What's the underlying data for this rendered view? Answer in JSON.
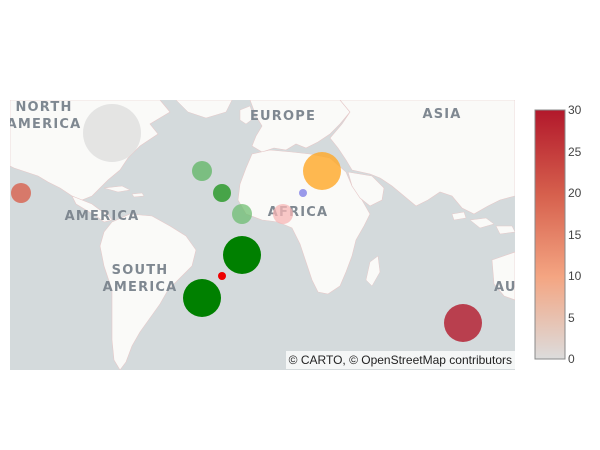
{
  "map": {
    "basemap": "carto-positron",
    "attribution": "© CARTO, © OpenStreetMap contributors",
    "region_labels": [
      {
        "id": "north-america",
        "lines": [
          "NORTH",
          "AMERICA"
        ]
      },
      {
        "id": "europe",
        "lines": [
          "EUROPE"
        ]
      },
      {
        "id": "asia",
        "lines": [
          "ASIA"
        ]
      },
      {
        "id": "america",
        "lines": [
          "AMERICA"
        ]
      },
      {
        "id": "africa",
        "lines": [
          "AFRICA"
        ]
      },
      {
        "id": "south-america",
        "lines": [
          "SOUTH",
          "AMERICA"
        ]
      },
      {
        "id": "australia-partial",
        "lines": [
          "AU"
        ]
      }
    ],
    "colors": {
      "water": "#d4dadc",
      "land": "#fafaf8",
      "border": "#e6c9c9"
    }
  },
  "markers": [
    {
      "name": "north-america-east",
      "color": "#dcdcdc",
      "opacity": 0.75
    },
    {
      "name": "north-atlantic-west",
      "color": "#4caf50",
      "opacity": 0.65
    },
    {
      "name": "pacific-mexico",
      "color": "#d7604d",
      "opacity": 0.8
    },
    {
      "name": "west-africa-offshore",
      "color": "#2e9a2e",
      "opacity": 0.85
    },
    {
      "name": "gulf-of-guinea-west",
      "color": "#66bb6a",
      "opacity": 0.7
    },
    {
      "name": "north-africa-small",
      "color": "#8e8ee8",
      "opacity": 0.9
    },
    {
      "name": "middle-east",
      "color": "#ffa726",
      "opacity": 0.8
    },
    {
      "name": "central-africa",
      "color": "#f7b6b6",
      "opacity": 0.75
    },
    {
      "name": "south-atlantic-north",
      "color": "#008000",
      "opacity": 1
    },
    {
      "name": "south-atlantic-tiny",
      "color": "#ee0000",
      "opacity": 1
    },
    {
      "name": "south-atlantic-south",
      "color": "#008000",
      "opacity": 1
    },
    {
      "name": "indian-ocean",
      "color": "#b2182b",
      "opacity": 0.8
    }
  ],
  "colorbar": {
    "min": 0,
    "max": 30,
    "ticks": [
      "0",
      "5",
      "10",
      "15",
      "20",
      "25",
      "30"
    ],
    "stops": [
      "#dcdcdc",
      "#f4a582",
      "#d6604d",
      "#b2182b"
    ]
  }
}
